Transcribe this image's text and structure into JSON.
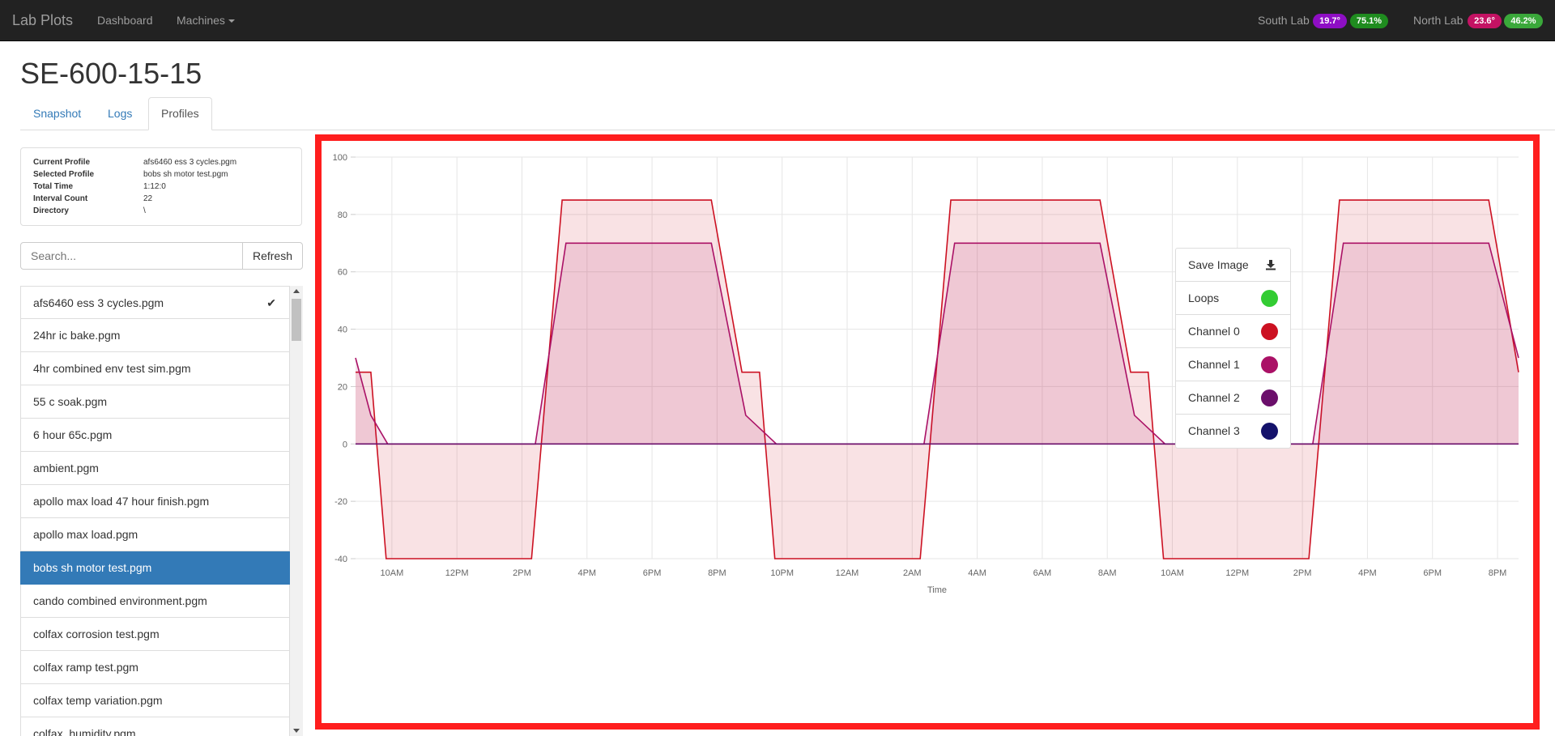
{
  "nav": {
    "brand": "Lab Plots",
    "dashboard": "Dashboard",
    "machines": "Machines",
    "labs": [
      {
        "name": "South Lab",
        "temp": "19.7°",
        "temp_color": "#8e0ec4",
        "humidity": "75.1%",
        "humidity_color": "#1f8c1f"
      },
      {
        "name": "North Lab",
        "temp": "23.6°",
        "temp_color": "#c41263",
        "humidity": "46.2%",
        "humidity_color": "#3aa83a"
      }
    ]
  },
  "page_title": "SE-600-15-15",
  "tabs": [
    {
      "label": "Snapshot"
    },
    {
      "label": "Logs"
    },
    {
      "label": "Profiles"
    }
  ],
  "profile_info": [
    {
      "key": "Current Profile",
      "value": "afs6460 ess 3 cycles.pgm"
    },
    {
      "key": "Selected Profile",
      "value": "bobs sh motor test.pgm"
    },
    {
      "key": "Total Time",
      "value": "1:12:0"
    },
    {
      "key": "Interval Count",
      "value": "22"
    },
    {
      "key": "Directory",
      "value": "\\"
    }
  ],
  "search": {
    "placeholder": "Search...",
    "refresh_label": "Refresh"
  },
  "profiles": [
    "afs6460 ess 3 cycles.pgm",
    "24hr ic bake.pgm",
    "4hr combined env test sim.pgm",
    "55 c soak.pgm",
    "6 hour 65c.pgm",
    "ambient.pgm",
    "apollo max load 47 hour finish.pgm",
    "apollo max load.pgm",
    "bobs sh motor test.pgm",
    "cando combined environment.pgm",
    "colfax corrosion test.pgm",
    "colfax ramp test.pgm",
    "colfax temp variation.pgm",
    "colfax_humidity.pgm"
  ],
  "current_profile_index": 0,
  "selected_profile_index": 8,
  "legend": {
    "save_label": "Save Image",
    "items": [
      {
        "label": "Loops",
        "color": "#33cc33"
      },
      {
        "label": "Channel 0",
        "color": "#cc1122"
      },
      {
        "label": "Channel 1",
        "color": "#aa1166"
      },
      {
        "label": "Channel 2",
        "color": "#6b0f6b"
      },
      {
        "label": "Channel 3",
        "color": "#14126b"
      }
    ]
  },
  "chart_data": {
    "type": "area",
    "xlabel": "Time",
    "ylabel": "",
    "ylim": [
      -40,
      100
    ],
    "xlim": [
      0,
      1.52
    ],
    "yticks": [
      100,
      80,
      60,
      40,
      20,
      0,
      -20,
      -40
    ],
    "x_ticks": [
      {
        "x": 0.0475,
        "label": "10AM"
      },
      {
        "x": 0.1325,
        "label": "12PM"
      },
      {
        "x": 0.2175,
        "label": "2PM"
      },
      {
        "x": 0.3025,
        "label": "4PM"
      },
      {
        "x": 0.3875,
        "label": "6PM"
      },
      {
        "x": 0.4725,
        "label": "8PM"
      },
      {
        "x": 0.5575,
        "label": "10PM"
      },
      {
        "x": 0.6425,
        "label": "12AM"
      },
      {
        "x": 0.7275,
        "label": "2AM"
      },
      {
        "x": 0.8125,
        "label": "4AM"
      },
      {
        "x": 0.8975,
        "label": "6AM"
      },
      {
        "x": 0.9825,
        "label": "8AM"
      },
      {
        "x": 1.0675,
        "label": "10AM"
      },
      {
        "x": 1.1525,
        "label": "12PM"
      },
      {
        "x": 1.2375,
        "label": "2PM"
      },
      {
        "x": 1.3225,
        "label": "4PM"
      },
      {
        "x": 1.4075,
        "label": "6PM"
      },
      {
        "x": 1.4925,
        "label": "8PM"
      }
    ],
    "grid": true,
    "series": [
      {
        "name": "Channel 0",
        "color": "#cc1122",
        "fill": "rgba(204,17,34,0.12)",
        "points": [
          [
            0,
            25
          ],
          [
            0.02,
            25
          ],
          [
            0.04,
            -40
          ],
          [
            0.23,
            -40
          ],
          [
            0.27,
            85
          ],
          [
            0.465,
            85
          ],
          [
            0.505,
            25
          ],
          [
            0.528,
            25
          ],
          [
            0.548,
            -40
          ],
          [
            0.738,
            -40
          ],
          [
            0.778,
            85
          ],
          [
            0.973,
            85
          ],
          [
            1.013,
            25
          ],
          [
            1.036,
            25
          ],
          [
            1.056,
            -40
          ],
          [
            1.246,
            -40
          ],
          [
            1.286,
            85
          ],
          [
            1.481,
            85
          ],
          [
            1.52,
            25
          ]
        ]
      },
      {
        "name": "Channel 1",
        "color": "#aa1166",
        "fill": "rgba(170,17,102,0.12)",
        "points": [
          [
            0,
            30
          ],
          [
            0.02,
            10
          ],
          [
            0.042,
            0
          ],
          [
            0.235,
            0
          ],
          [
            0.275,
            70
          ],
          [
            0.465,
            70
          ],
          [
            0.51,
            10
          ],
          [
            0.55,
            0
          ],
          [
            0.743,
            0
          ],
          [
            0.783,
            70
          ],
          [
            0.973,
            70
          ],
          [
            1.018,
            10
          ],
          [
            1.058,
            0
          ],
          [
            1.251,
            0
          ],
          [
            1.291,
            70
          ],
          [
            1.481,
            70
          ],
          [
            1.52,
            30
          ]
        ]
      }
    ]
  }
}
